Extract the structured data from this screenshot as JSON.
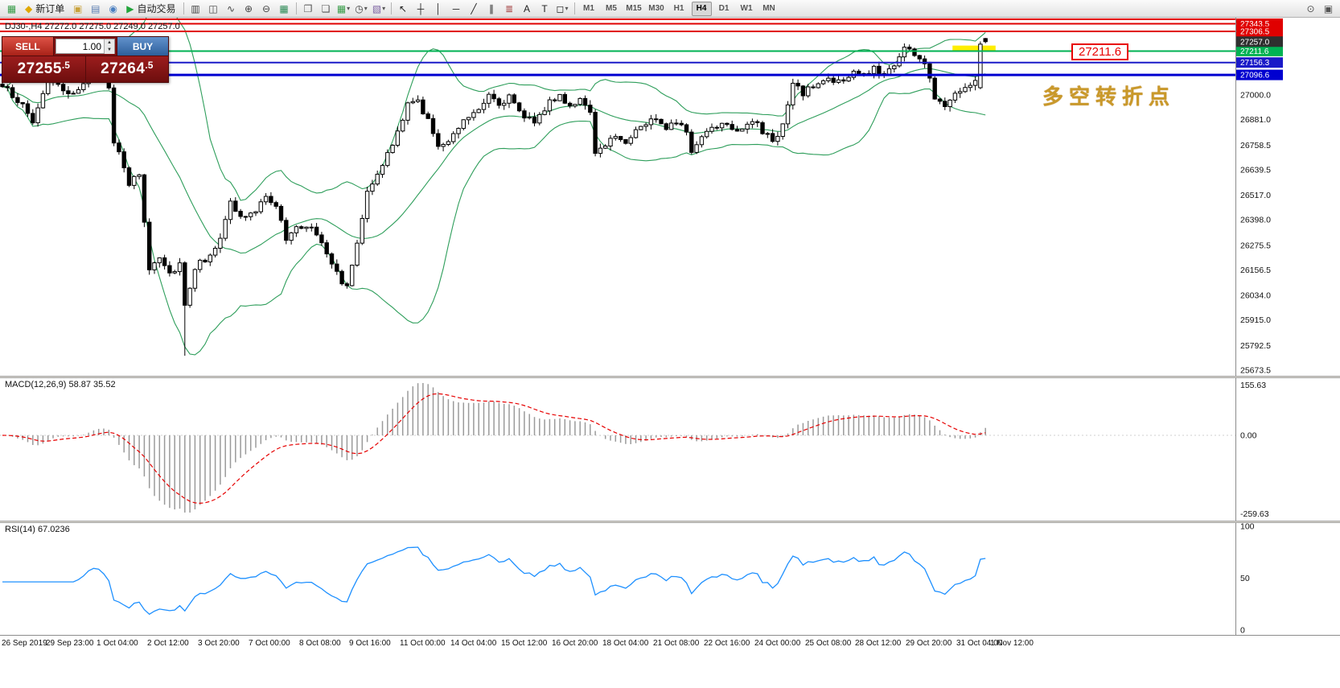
{
  "toolbar": {
    "active_timeframe": "H4",
    "items": [
      {
        "type": "icon",
        "name": "terminal-chart-icon",
        "glyph": "▦",
        "color": "#3a9d4a"
      },
      {
        "type": "button",
        "name": "new-order-button",
        "glyph": "◆",
        "color": "#e0a800",
        "label": "新订单"
      },
      {
        "type": "icon",
        "name": "favorites-icon",
        "glyph": "▣",
        "color": "#c9a23c"
      },
      {
        "type": "icon",
        "name": "print-icon",
        "glyph": "▤",
        "color": "#5b7db1"
      },
      {
        "type": "icon",
        "name": "community-icon",
        "glyph": "◉",
        "color": "#4a7fc1"
      },
      {
        "type": "button",
        "name": "auto-trading-button",
        "glyph": "▶",
        "color": "#21a53a",
        "label": "自动交易"
      },
      {
        "type": "sep"
      },
      {
        "type": "icon",
        "name": "bar-chart-mode-icon",
        "glyph": "▥",
        "color": "#444444"
      },
      {
        "type": "icon",
        "name": "candlestick-mode-icon",
        "glyph": "◫",
        "color": "#444444"
      },
      {
        "type": "icon",
        "name": "line-chart-mode-icon",
        "glyph": "∿",
        "color": "#444444"
      },
      {
        "type": "icon",
        "name": "zoom-in-icon",
        "glyph": "⊕",
        "color": "#444444"
      },
      {
        "type": "icon",
        "name": "zoom-out-icon",
        "glyph": "⊖",
        "color": "#444444"
      },
      {
        "type": "icon",
        "name": "grid-icon",
        "glyph": "▦",
        "color": "#2e8b57"
      },
      {
        "type": "sep"
      },
      {
        "type": "icon",
        "name": "tile-windows-icon",
        "glyph": "❐",
        "color": "#555555"
      },
      {
        "type": "icon",
        "name": "cascade-windows-icon",
        "glyph": "❏",
        "color": "#555555"
      },
      {
        "type": "button",
        "name": "new-chart-button",
        "glyph": "▦",
        "color": "#3a9d4a",
        "dropdown": true
      },
      {
        "type": "button",
        "name": "periods-button",
        "glyph": "◷",
        "color": "#444444",
        "dropdown": true
      },
      {
        "type": "button",
        "name": "templates-button",
        "glyph": "▧",
        "color": "#7a5fa0",
        "dropdown": true
      },
      {
        "type": "sep"
      },
      {
        "type": "icon",
        "name": "cursor-icon",
        "glyph": "↖",
        "color": "#222222"
      },
      {
        "type": "icon",
        "name": "crosshair-icon",
        "glyph": "┼",
        "color": "#222222"
      },
      {
        "type": "icon",
        "name": "vertical-line-icon",
        "glyph": "│",
        "color": "#222222"
      },
      {
        "type": "icon",
        "name": "horizontal-line-icon",
        "glyph": "─",
        "color": "#222222"
      },
      {
        "type": "icon",
        "name": "trendline-icon",
        "glyph": "╱",
        "color": "#222222"
      },
      {
        "type": "icon",
        "name": "channel-icon",
        "glyph": "∥",
        "color": "#222222"
      },
      {
        "type": "icon",
        "name": "fibonacci-icon",
        "glyph": "≣",
        "color": "#a03535"
      },
      {
        "type": "icon",
        "name": "text-icon",
        "glyph": "A",
        "color": "#222222"
      },
      {
        "type": "icon",
        "name": "text-label-icon",
        "glyph": "T",
        "color": "#222222"
      },
      {
        "type": "button",
        "name": "shapes-button",
        "glyph": "◻",
        "color": "#222222",
        "dropdown": true
      },
      {
        "type": "sep"
      },
      {
        "type": "tf",
        "label": "M1"
      },
      {
        "type": "tf",
        "label": "M5"
      },
      {
        "type": "tf",
        "label": "M15"
      },
      {
        "type": "tf",
        "label": "M30"
      },
      {
        "type": "tf",
        "label": "H1"
      },
      {
        "type": "tf",
        "label": "H4"
      },
      {
        "type": "tf",
        "label": "D1"
      },
      {
        "type": "tf",
        "label": "W1"
      },
      {
        "type": "tf",
        "label": "MN"
      },
      {
        "type": "spacer"
      },
      {
        "type": "icon",
        "name": "search-icon",
        "glyph": "⊙",
        "color": "#555555"
      },
      {
        "type": "icon",
        "name": "properties-icon",
        "glyph": "▣",
        "color": "#555555"
      }
    ]
  },
  "chart": {
    "title_symbol": "DJ30-,H4",
    "title_ohlc": "27272.0 27275.0 27249.0 27257.0"
  },
  "order_panel": {
    "sell_label": "SELL",
    "buy_label": "BUY",
    "volume": "1.00",
    "sell_price_big": "27255",
    "sell_price_small": ".5",
    "buy_price_big": "27264",
    "buy_price_small": ".5"
  },
  "annotations": {
    "price_callout": "27211.6",
    "turning_point_text": "多空转折点"
  },
  "indicator_labels": {
    "macd": "MACD(12,26,9) 58.87 35.52",
    "rsi": "RSI(14) 67.0236"
  },
  "chart_data": {
    "type": "candlestick",
    "symbol": "DJ30-",
    "timeframe": "H4",
    "bar_count": 195,
    "price_range": {
      "top": 27372.4,
      "bottom": 25646.3
    },
    "price_axis_labels": [
      27000.0,
      26881.0,
      26758.5,
      26639.5,
      26517.0,
      26398.0,
      26275.5,
      26156.5,
      26034.0,
      25915.0,
      25792.5,
      25673.5
    ],
    "hlines": [
      {
        "price": 27365.0,
        "color": "#e00000",
        "width": 2,
        "tag": false
      },
      {
        "price": 27343.5,
        "color": "#e00000",
        "width": 2,
        "tag": true
      },
      {
        "price": 27306.5,
        "color": "#e00000",
        "width": 2,
        "tag": true
      },
      {
        "price": 27211.6,
        "color": "#00b253",
        "width": 2,
        "tag": true
      },
      {
        "price": 27156.3,
        "color": "#1a1ac8",
        "width": 2,
        "tag": true
      },
      {
        "price": 27096.6,
        "color": "#0000d0",
        "width": 3,
        "tag": true
      }
    ],
    "current_price_tag": {
      "value": 27257.0,
      "bg": "#2f2f2f"
    },
    "close_keypoints": [
      [
        0,
        27040
      ],
      [
        3,
        26980
      ],
      [
        6,
        26870
      ],
      [
        9,
        27080
      ],
      [
        13,
        26990
      ],
      [
        17,
        27090
      ],
      [
        19,
        27130
      ],
      [
        21,
        27050
      ],
      [
        22,
        26780
      ],
      [
        25,
        26570
      ],
      [
        27,
        26620
      ],
      [
        29,
        26160
      ],
      [
        31,
        26230
      ],
      [
        33,
        26140
      ],
      [
        35,
        26190
      ],
      [
        36,
        25990
      ],
      [
        38,
        26170
      ],
      [
        40,
        26210
      ],
      [
        43,
        26300
      ],
      [
        45,
        26480
      ],
      [
        47,
        26410
      ],
      [
        50,
        26430
      ],
      [
        52,
        26520
      ],
      [
        54,
        26470
      ],
      [
        56,
        26300
      ],
      [
        58,
        26360
      ],
      [
        61,
        26370
      ],
      [
        63,
        26300
      ],
      [
        66,
        26140
      ],
      [
        68,
        26070
      ],
      [
        70,
        26290
      ],
      [
        72,
        26550
      ],
      [
        74,
        26610
      ],
      [
        77,
        26760
      ],
      [
        80,
        26950
      ],
      [
        82,
        26970
      ],
      [
        84,
        26880
      ],
      [
        86,
        26740
      ],
      [
        88,
        26790
      ],
      [
        91,
        26880
      ],
      [
        94,
        26940
      ],
      [
        96,
        27010
      ],
      [
        98,
        26960
      ],
      [
        100,
        26990
      ],
      [
        102,
        26910
      ],
      [
        105,
        26880
      ],
      [
        108,
        26960
      ],
      [
        110,
        27000
      ],
      [
        112,
        26950
      ],
      [
        114,
        26980
      ],
      [
        116,
        26900
      ],
      [
        117,
        26710
      ],
      [
        119,
        26770
      ],
      [
        121,
        26800
      ],
      [
        123,
        26780
      ],
      [
        126,
        26850
      ],
      [
        129,
        26890
      ],
      [
        131,
        26850
      ],
      [
        133,
        26880
      ],
      [
        135,
        26810
      ],
      [
        136,
        26730
      ],
      [
        138,
        26800
      ],
      [
        140,
        26850
      ],
      [
        143,
        26870
      ],
      [
        145,
        26830
      ],
      [
        148,
        26880
      ],
      [
        150,
        26820
      ],
      [
        152,
        26780
      ],
      [
        154,
        26850
      ],
      [
        156,
        27050
      ],
      [
        158,
        27010
      ],
      [
        160,
        27040
      ],
      [
        163,
        27080
      ],
      [
        166,
        27060
      ],
      [
        168,
        27110
      ],
      [
        170,
        27090
      ],
      [
        172,
        27130
      ],
      [
        174,
        27100
      ],
      [
        176,
        27150
      ],
      [
        178,
        27230
      ],
      [
        180,
        27200
      ],
      [
        182,
        27150
      ],
      [
        184,
        26990
      ],
      [
        186,
        26960
      ],
      [
        188,
        27010
      ],
      [
        190,
        27050
      ],
      [
        192,
        27060
      ],
      [
        193,
        27245
      ],
      [
        194,
        27257
      ]
    ],
    "spike_low": {
      "index": 36,
      "price": 25743
    },
    "prev_bar": {
      "open": 27035,
      "high": 27258,
      "low": 27028,
      "close": 27245
    },
    "current_bar": {
      "open": 27272.0,
      "high": 27275.0,
      "low": 27249.0,
      "close": 27257.0
    },
    "bollinger": {
      "period": 20,
      "deviation": 2
    },
    "yellow_marker": {
      "bar_start": 187.5,
      "bar_end": 196,
      "price_top": 27238,
      "price_bottom": 27213
    },
    "macd": {
      "params": [
        12,
        26,
        9
      ],
      "current_main": 58.87,
      "current_signal": 35.52,
      "axis_labels": [
        "155.63",
        "0.00",
        "-259.63"
      ]
    },
    "rsi": {
      "period": 14,
      "current": 67.0236,
      "axis_labels": [
        "100",
        "50",
        "0"
      ]
    },
    "time_labels": [
      "26 Sep 2019",
      "29 Sep 23:00",
      "1 Oct 04:00",
      "2 Oct 12:00",
      "3 Oct 20:00",
      "7 Oct 00:00",
      "8 Oct 08:00",
      "9 Oct 16:00",
      "11 Oct 00:00",
      "14 Oct 04:00",
      "15 Oct 12:00",
      "16 Oct 20:00",
      "18 Oct 04:00",
      "21 Oct 08:00",
      "22 Oct 16:00",
      "24 Oct 00:00",
      "25 Oct 08:00",
      "28 Oct 12:00",
      "29 Oct 20:00",
      "31 Oct 04:00",
      "1 Nov 12:00"
    ],
    "colors": {
      "up_candle": "#ffffff",
      "down_candle": "#000000",
      "bollinger": "#2e9e5b",
      "macd_hist": "#9a9a9a",
      "macd_signal": "#e60000",
      "rsi_line": "#1e90ff",
      "yellow_marker": "#ffee00",
      "annotation_red": "#e80000",
      "annotation_gold": "#c9992a",
      "sell_red": "#c8372d",
      "buy_blue": "#3b6fae",
      "panel_maroon": "#7d1111"
    }
  }
}
